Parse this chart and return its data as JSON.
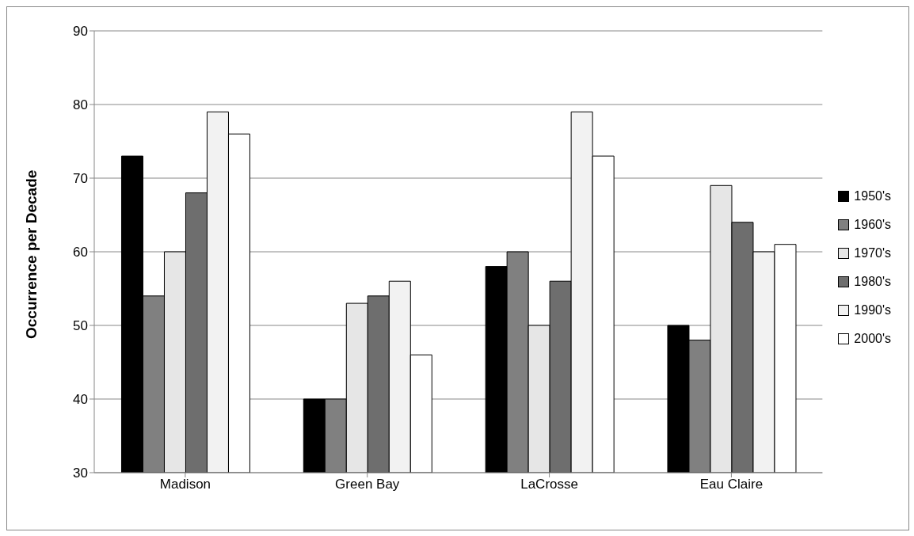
{
  "chart_data": {
    "type": "bar",
    "ylabel": "Occurrence per Decade",
    "categories": [
      "Madison",
      "Green Bay",
      "LaCrosse",
      "Eau Claire"
    ],
    "series": [
      {
        "name": "1950's",
        "color": "#000000",
        "values": [
          73,
          40,
          58,
          50
        ]
      },
      {
        "name": "1960's",
        "color": "#808080",
        "values": [
          54,
          40,
          60,
          48
        ]
      },
      {
        "name": "1970's",
        "color": "#e6e6e6",
        "values": [
          60,
          53,
          50,
          69
        ]
      },
      {
        "name": "1980's",
        "color": "#6e6e6e",
        "values": [
          68,
          54,
          56,
          64
        ]
      },
      {
        "name": "1990's",
        "color": "#f2f2f2",
        "values": [
          79,
          56,
          79,
          60
        ]
      },
      {
        "name": "2000's",
        "color": "#ffffff",
        "values": [
          76,
          46,
          73,
          61
        ]
      }
    ],
    "ylim": [
      30,
      90
    ],
    "yticks": [
      30,
      40,
      50,
      60,
      70,
      80,
      90
    ],
    "grid": "y",
    "legend": "right"
  }
}
